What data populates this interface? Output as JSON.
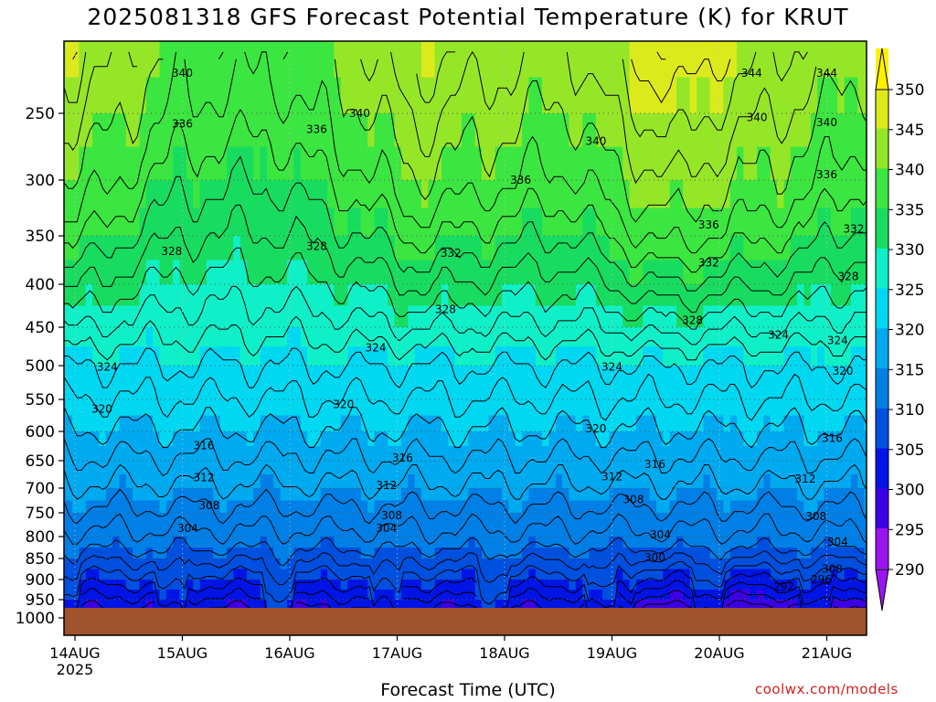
{
  "page": {
    "title": "2025081318 GFS Forecast Potential Temperature (K) for KRUT",
    "credit": "coolwx.com/models"
  },
  "chart_data": {
    "type": "heatmap",
    "title": "2025081318 GFS Forecast Potential Temperature (K) for KRUT",
    "xlabel": "Forecast Time (UTC)",
    "ylabel": "",
    "x_ticks": [
      "14AUG",
      "15AUG",
      "16AUG",
      "17AUG",
      "18AUG",
      "19AUG",
      "20AUG",
      "21AUG"
    ],
    "x_year": "2025",
    "xlim": [
      0.0,
      7.5
    ],
    "y_ticks": [
      250,
      300,
      350,
      400,
      450,
      500,
      550,
      600,
      650,
      700,
      750,
      800,
      850,
      900,
      950,
      1000
    ],
    "ylim": [
      200,
      1000
    ],
    "ground_level_hPa": 970,
    "grid": true,
    "colorbar": {
      "levels": [
        290,
        295,
        300,
        305,
        310,
        315,
        320,
        325,
        330,
        335,
        340,
        345,
        350
      ],
      "labels": [
        "290",
        "295",
        "300",
        "305",
        "310",
        "315",
        "320",
        "325",
        "330",
        "335",
        "340",
        "345",
        "350"
      ],
      "colors": [
        "#9a14f0",
        "#3c00e6",
        "#0014e6",
        "#0050e0",
        "#0080e6",
        "#00aaf0",
        "#00d8f2",
        "#10f0c8",
        "#18dc60",
        "#3ce640",
        "#96e628",
        "#dcea1c",
        "#fff000"
      ],
      "placement": "right"
    },
    "isotherm_labels": [
      {
        "value": "340",
        "x": 1.0,
        "p": 222
      },
      {
        "value": "336",
        "x": 1.0,
        "p": 258
      },
      {
        "value": "328",
        "x": 0.9,
        "p": 366
      },
      {
        "value": "324",
        "x": 0.3,
        "p": 502
      },
      {
        "value": "320",
        "x": 0.25,
        "p": 565
      },
      {
        "value": "316",
        "x": 1.2,
        "p": 624
      },
      {
        "value": "312",
        "x": 1.2,
        "p": 681
      },
      {
        "value": "308",
        "x": 1.25,
        "p": 735
      },
      {
        "value": "304",
        "x": 1.05,
        "p": 783
      },
      {
        "value": "336",
        "x": 2.25,
        "p": 262
      },
      {
        "value": "340",
        "x": 2.65,
        "p": 250
      },
      {
        "value": "328",
        "x": 2.25,
        "p": 361
      },
      {
        "value": "320",
        "x": 2.5,
        "p": 558
      },
      {
        "value": "332",
        "x": 3.5,
        "p": 368
      },
      {
        "value": "328",
        "x": 3.45,
        "p": 429
      },
      {
        "value": "324",
        "x": 2.8,
        "p": 477
      },
      {
        "value": "316",
        "x": 3.05,
        "p": 645
      },
      {
        "value": "312",
        "x": 2.9,
        "p": 695
      },
      {
        "value": "308",
        "x": 2.95,
        "p": 756
      },
      {
        "value": "304",
        "x": 2.9,
        "p": 783
      },
      {
        "value": "336",
        "x": 4.15,
        "p": 300
      },
      {
        "value": "340",
        "x": 4.85,
        "p": 271
      },
      {
        "value": "320",
        "x": 4.85,
        "p": 596
      },
      {
        "value": "324",
        "x": 5.0,
        "p": 502
      },
      {
        "value": "316",
        "x": 5.4,
        "p": 657
      },
      {
        "value": "312",
        "x": 5.0,
        "p": 679
      },
      {
        "value": "308",
        "x": 5.2,
        "p": 723
      },
      {
        "value": "304",
        "x": 5.45,
        "p": 796
      },
      {
        "value": "300",
        "x": 5.4,
        "p": 848
      },
      {
        "value": "328",
        "x": 5.75,
        "p": 442
      },
      {
        "value": "332",
        "x": 5.9,
        "p": 378
      },
      {
        "value": "336",
        "x": 5.9,
        "p": 340
      },
      {
        "value": "340",
        "x": 6.35,
        "p": 253
      },
      {
        "value": "344",
        "x": 6.3,
        "p": 222
      },
      {
        "value": "324",
        "x": 6.55,
        "p": 460
      },
      {
        "value": "320",
        "x": 7.15,
        "p": 508
      },
      {
        "value": "316",
        "x": 7.05,
        "p": 612
      },
      {
        "value": "312",
        "x": 6.8,
        "p": 683
      },
      {
        "value": "308",
        "x": 6.9,
        "p": 758
      },
      {
        "value": "304",
        "x": 7.1,
        "p": 813
      },
      {
        "value": "300",
        "x": 7.05,
        "p": 875
      },
      {
        "value": "296",
        "x": 6.95,
        "p": 900
      },
      {
        "value": "292",
        "x": 6.6,
        "p": 918
      },
      {
        "value": "336",
        "x": 7.0,
        "p": 296
      },
      {
        "value": "340",
        "x": 7.0,
        "p": 257
      },
      {
        "value": "344",
        "x": 7.0,
        "p": 222
      },
      {
        "value": "332",
        "x": 7.25,
        "p": 344
      },
      {
        "value": "328",
        "x": 7.2,
        "p": 392
      },
      {
        "value": "324",
        "x": 7.1,
        "p": 467
      }
    ]
  }
}
